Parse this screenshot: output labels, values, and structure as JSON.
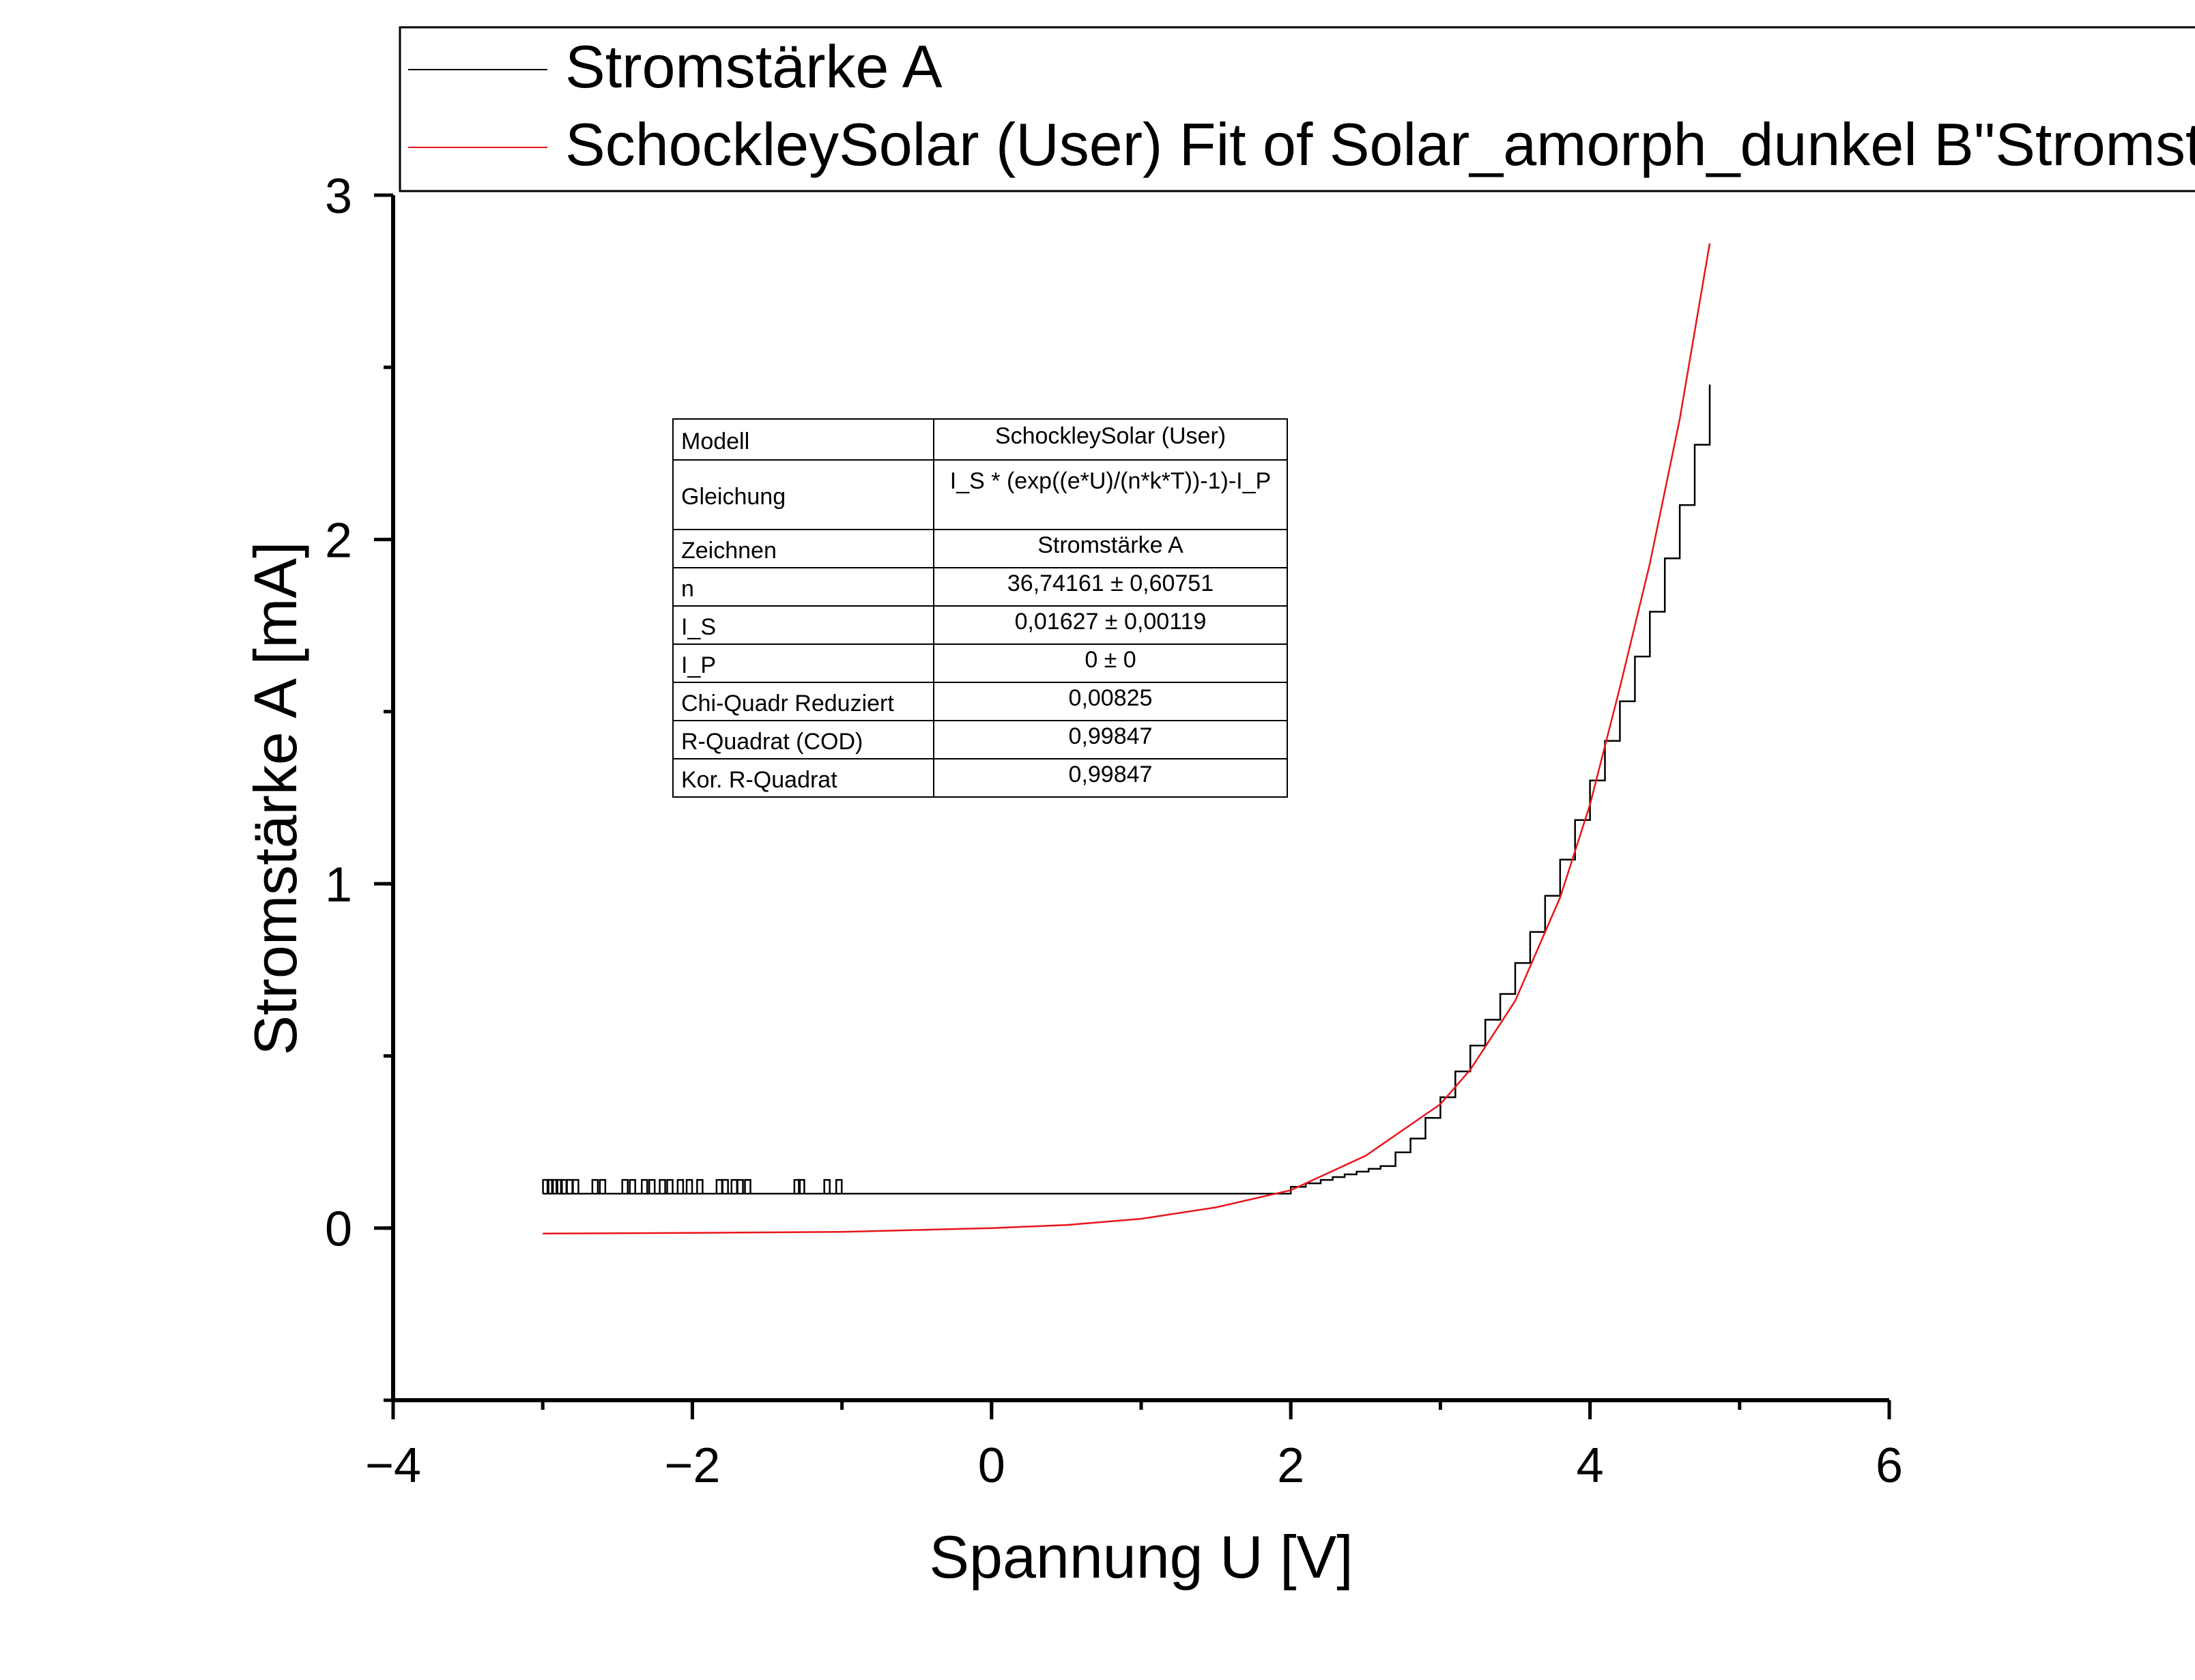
{
  "chart_data": {
    "type": "line",
    "xlabel": "Spannung U [V]",
    "ylabel": "Stromstärke A [mA]",
    "xlim": [
      -4,
      6
    ],
    "ylim": [
      -0.5,
      3
    ],
    "x_ticks": [
      -4,
      -2,
      0,
      2,
      4,
      6
    ],
    "x_tick_labels": [
      "−4",
      "−2",
      "0",
      "2",
      "4",
      "6"
    ],
    "y_ticks": [
      0,
      1,
      2,
      3
    ],
    "y_tick_labels": [
      "0",
      "1",
      "2",
      "3"
    ],
    "x_minor_step": 1,
    "y_minor_step": 0.5,
    "grid": false,
    "legend": {
      "placement": "top",
      "entries": [
        {
          "label": "Stromstärke A",
          "color": "#000000"
        },
        {
          "label": "SchockleySolar (User) Fit of Solar_amorph_dunkel B\"Stromstärke A\"",
          "color": "#e8151b"
        }
      ]
    },
    "series": [
      {
        "name": "Stromstärke A",
        "color": "#000000",
        "x": [
          -3.0,
          -2.0,
          -1.0,
          0.0,
          1.0,
          1.9,
          2.0,
          2.2,
          2.6,
          2.8,
          3.0,
          3.2,
          3.4,
          3.6,
          3.8,
          4.0,
          4.2,
          4.4,
          4.6,
          4.8
        ],
        "y": [
          0.1,
          0.1,
          0.1,
          0.1,
          0.1,
          0.1,
          0.12,
          0.14,
          0.18,
          0.26,
          0.38,
          0.53,
          0.68,
          0.86,
          1.07,
          1.3,
          1.53,
          1.79,
          2.1,
          2.45
        ],
        "noise_spikes_x": [
          -2.98,
          -2.95,
          -2.92,
          -2.89,
          -2.86,
          -2.82,
          -2.78,
          -2.65,
          -2.6,
          -2.45,
          -2.4,
          -2.32,
          -2.27,
          -2.2,
          -2.15,
          -2.08,
          -2.02,
          -1.95,
          -1.82,
          -1.78,
          -1.72,
          -1.68,
          -1.63,
          -1.3,
          -1.27,
          -1.1,
          -1.02
        ],
        "noise_spike_height": 0.04
      },
      {
        "name": "SchockleySolar (User) Fit of Solar_amorph_dunkel B\"Stromstärke A\"",
        "color": "#e8151b",
        "x": [
          -3.0,
          -2.0,
          -1.0,
          0.0,
          0.5,
          1.0,
          1.5,
          2.0,
          2.5,
          3.0,
          3.2,
          3.5,
          3.8,
          4.0,
          4.2,
          4.4,
          4.6,
          4.8
        ],
        "y": [
          -0.016,
          -0.014,
          -0.011,
          0.0,
          0.009,
          0.027,
          0.06,
          0.11,
          0.21,
          0.36,
          0.46,
          0.66,
          0.96,
          1.23,
          1.57,
          1.93,
          2.35,
          2.86
        ]
      }
    ],
    "annotation_table": {
      "rows": [
        [
          "Modell",
          "SchockleySolar (User)"
        ],
        [
          "Gleichung",
          "I_S * (exp((e*U)/(n*k*T))-1)-I_P"
        ],
        [
          "Zeichnen",
          "Stromstärke A"
        ],
        [
          "n",
          "36,74161 ± 0,60751"
        ],
        [
          "I_S",
          "0,01627 ± 0,00119"
        ],
        [
          "I_P",
          "0 ± 0"
        ],
        [
          "Chi-Quadr Reduziert",
          "0,00825"
        ],
        [
          "R-Quadrat (COD)",
          "0,99847"
        ],
        [
          "Kor. R-Quadrat",
          "0,99847"
        ]
      ]
    }
  }
}
